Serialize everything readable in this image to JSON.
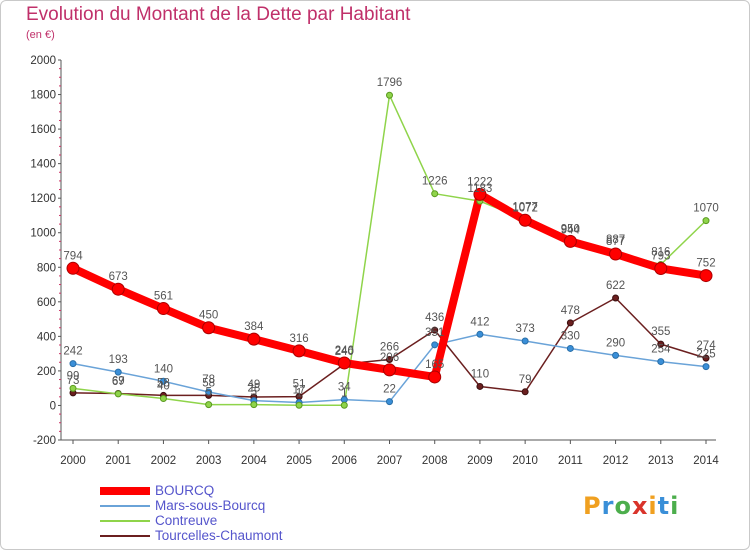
{
  "title": "Evolution du Montant de la Dette par Habitant",
  "subtitle": "(en €)",
  "logo": {
    "letters": [
      "P",
      "r",
      "o",
      "x",
      "i",
      "t",
      "i"
    ],
    "colors": [
      "#f0a020",
      "#3a8fd8",
      "#4cae4c",
      "#d9342b",
      "#f0a020",
      "#3a8fd8",
      "#4cae4c"
    ]
  },
  "chart_data": {
    "type": "line",
    "title": "Evolution du Montant de la Dette par Habitant",
    "ylabel": "(en €)",
    "x": [
      "2000",
      "2001",
      "2002",
      "2003",
      "2004",
      "2005",
      "2006",
      "2007",
      "2008",
      "2009",
      "2010",
      "2011",
      "2012",
      "2013",
      "2014"
    ],
    "ylim": [
      -200,
      2000
    ],
    "yticks": [
      -200,
      0,
      200,
      400,
      600,
      800,
      1000,
      1200,
      1400,
      1600,
      1800,
      2000
    ],
    "grid": false,
    "legend": "bottom-left",
    "series": [
      {
        "name": "BOURCQ",
        "color": "#ff0000",
        "values": [
          794,
          673,
          561,
          450,
          384,
          316,
          246,
          206,
          165,
          1222,
          1072,
          950,
          877,
          793,
          752
        ],
        "labels": [
          "794",
          "673",
          "561",
          "450",
          "384",
          "316",
          "246",
          "206",
          "165",
          "1222",
          "1072",
          "950",
          "877",
          "793",
          "752"
        ]
      },
      {
        "name": "Mars-sous-Bourcq",
        "color": "#6aa3d8",
        "values": [
          242,
          193,
          140,
          78,
          28,
          17,
          34,
          22,
          351,
          412,
          373,
          330,
          290,
          254,
          225
        ],
        "labels": [
          "242",
          "193",
          "140",
          "78",
          "28",
          "17",
          "34",
          "22",
          "351",
          "412",
          "373",
          "330",
          "290",
          "254",
          "225"
        ]
      },
      {
        "name": "Contreuve",
        "color": "#8fd44a",
        "values": [
          99,
          67,
          40,
          5,
          5,
          1,
          1,
          1796,
          1226,
          1183,
          1077,
          944,
          887,
          816,
          1070
        ],
        "labels": [
          "99",
          "67",
          "40",
          "5",
          "5",
          "1",
          "1",
          "1796",
          "1226",
          "1183",
          "1077",
          "944",
          "887",
          "816",
          "1070"
        ]
      },
      {
        "name": "Tourcelles-Chaumont",
        "color": "#6b1f1f",
        "values": [
          73,
          69,
          58,
          58,
          49,
          51,
          240,
          266,
          436,
          110,
          79,
          478,
          622,
          355,
          274
        ],
        "labels": [
          "73",
          "69",
          "58",
          "58",
          "49",
          "51",
          "240",
          "266",
          "436",
          "110",
          "79",
          "478",
          "622",
          "355",
          "274"
        ]
      }
    ]
  }
}
